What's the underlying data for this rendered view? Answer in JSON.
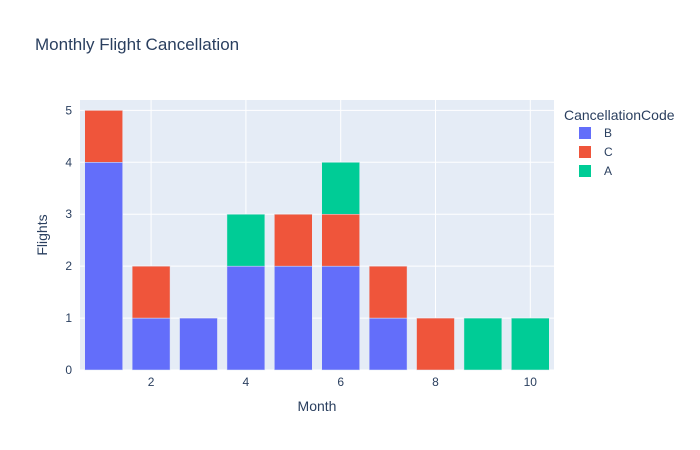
{
  "chart_data": {
    "type": "bar",
    "barmode": "stack",
    "title": "Monthly Flight Cancellation",
    "xlabel": "Month",
    "ylabel": "Flights",
    "x": [
      1,
      2,
      3,
      4,
      5,
      6,
      7,
      8,
      9,
      10
    ],
    "xlim": [
      0.5,
      10.5
    ],
    "ylim": [
      0,
      5.2
    ],
    "x_ticks": [
      2,
      4,
      6,
      8,
      10
    ],
    "y_ticks": [
      0,
      1,
      2,
      3,
      4,
      5
    ],
    "grid": true,
    "legend_title": "CancellationCode",
    "legend_position": "right",
    "series": [
      {
        "name": "B",
        "color": "#636efa",
        "values": [
          4,
          1,
          1,
          2,
          2,
          2,
          1,
          0,
          0,
          0
        ]
      },
      {
        "name": "C",
        "color": "#ef553b",
        "values": [
          1,
          1,
          0,
          0,
          1,
          1,
          1,
          1,
          0,
          0
        ]
      },
      {
        "name": "A",
        "color": "#00cc96",
        "values": [
          0,
          0,
          0,
          1,
          0,
          1,
          0,
          0,
          1,
          1
        ]
      }
    ]
  }
}
